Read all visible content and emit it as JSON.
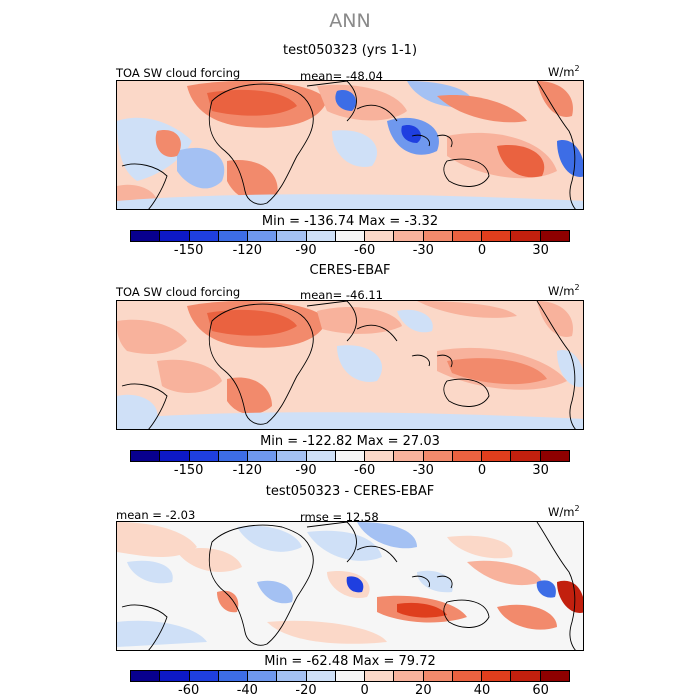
{
  "title": "ANN",
  "palette_abs": [
    "#08008e",
    "#0d19c6",
    "#1f3fe0",
    "#3d6de6",
    "#6f98ee",
    "#a4c1f3",
    "#cfe0f7",
    "#f6f6f6",
    "#fbd8c8",
    "#f8b29c",
    "#f28a6c",
    "#ea6240",
    "#df3e1d",
    "#c2200e",
    "#8e0000"
  ],
  "palette_diff": [
    "#08008e",
    "#0d19c6",
    "#1f3fe0",
    "#3d6de6",
    "#6f98ee",
    "#a4c1f3",
    "#cfe0f7",
    "#f6f6f6",
    "#fbd8c8",
    "#f8b29c",
    "#f28a6c",
    "#ea6240",
    "#df3e1d",
    "#c2200e",
    "#8e0000"
  ],
  "panels": [
    {
      "title": "test050323 (yrs 1-1)",
      "left_label": "TOA SW cloud forcing",
      "center_label": "mean= -48.04",
      "units": "W/m",
      "units_sup": "2",
      "minmax": "Min = -136.74  Max =   -3.32",
      "ticks": [
        "-150",
        "-120",
        "-90",
        "-60",
        "-30",
        "0",
        "30"
      ]
    },
    {
      "title": "CERES-EBAF",
      "left_label": "TOA SW cloud forcing",
      "center_label": "mean= -46.11",
      "units": "W/m",
      "units_sup": "2",
      "minmax": "Min = -122.82  Max =   27.03",
      "ticks": [
        "-150",
        "-120",
        "-90",
        "-60",
        "-30",
        "0",
        "30"
      ]
    },
    {
      "title": "test050323 - CERES-EBAF",
      "left_label": "mean =  -2.03",
      "center_label": "rmse =  12.58",
      "units": "W/m",
      "units_sup": "2",
      "minmax": "Min = -62.48  Max =   79.72",
      "ticks": [
        "-60",
        "-40",
        "-20",
        "0",
        "20",
        "40",
        "60"
      ]
    }
  ]
}
